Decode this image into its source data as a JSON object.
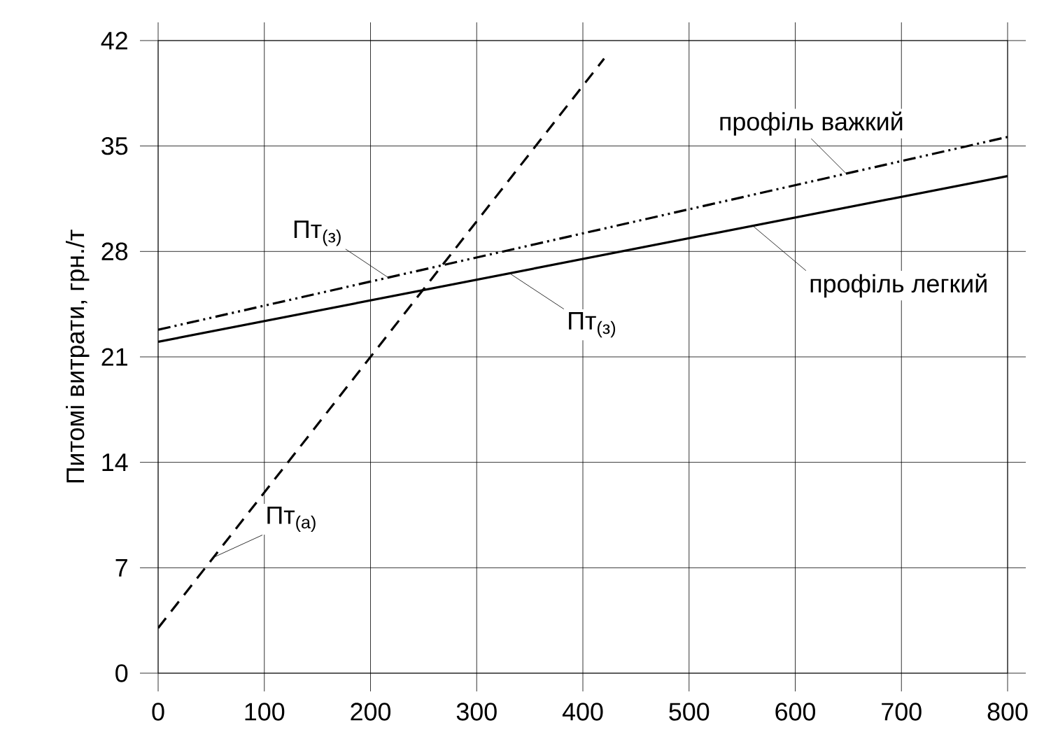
{
  "chart_data": {
    "type": "line",
    "ylabel": "Питомі витрати, грн./т",
    "xlim": [
      0,
      800
    ],
    "ylim": [
      0,
      42
    ],
    "xticks": [
      0,
      100,
      200,
      300,
      400,
      500,
      600,
      700,
      800
    ],
    "yticks": [
      0,
      7,
      14,
      21,
      28,
      35,
      42
    ],
    "grid": true,
    "series": [
      {
        "name": "Пт$_{(а)}$",
        "color": "#000000",
        "line_style": "dashed",
        "x": [
          0,
          420
        ],
        "values": [
          3,
          40.8
        ]
      },
      {
        "name": "профіль важкий",
        "color": "#000000",
        "line_style": "dashdotdotted",
        "x": [
          0,
          800
        ],
        "values": [
          22.8,
          35.6
        ]
      },
      {
        "name": "профіль легкий",
        "color": "#000000",
        "line_style": "solid",
        "x": [
          0,
          800
        ],
        "values": [
          22,
          33
        ]
      }
    ],
    "annotations": [
      {
        "text": "Пт$_{(з)}$",
        "x": 216,
        "y": 26.3
      },
      {
        "text": "Пт$_{(з)}$",
        "x": 332,
        "y": 26.5
      }
    ]
  }
}
